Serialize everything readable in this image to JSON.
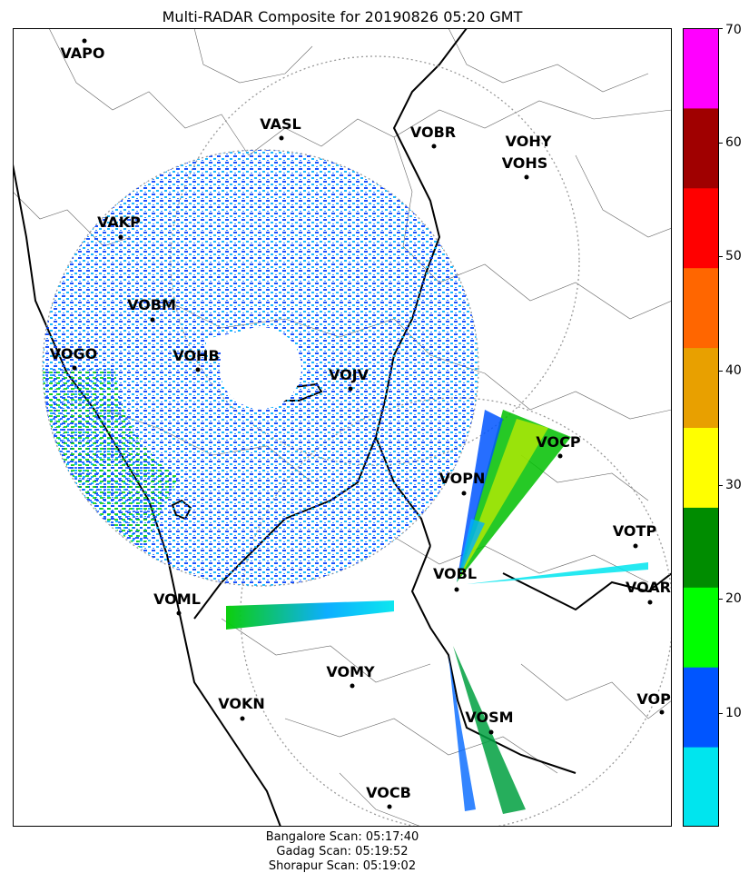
{
  "title": "Multi-RADAR Composite for 20190826 05:20 GMT",
  "stations": [
    {
      "code": "VAPO"
    },
    {
      "code": "VASL"
    },
    {
      "code": "VOBR"
    },
    {
      "code": "VOHY"
    },
    {
      "code": "VOHS"
    },
    {
      "code": "VAKP"
    },
    {
      "code": "VOBM"
    },
    {
      "code": "VOGO"
    },
    {
      "code": "VOHB"
    },
    {
      "code": "VOJV"
    },
    {
      "code": "VOCP"
    },
    {
      "code": "VOPN"
    },
    {
      "code": "VOTP"
    },
    {
      "code": "VOBL"
    },
    {
      "code": "VOAR"
    },
    {
      "code": "VOML"
    },
    {
      "code": "VOMY"
    },
    {
      "code": "VOKN"
    },
    {
      "code": "VOSM"
    },
    {
      "code": "VOPC"
    },
    {
      "code": "VOCB"
    }
  ],
  "colorbar": {
    "min": 0,
    "max": 70,
    "ticks": [
      "10",
      "20",
      "30",
      "40",
      "50",
      "60",
      "70"
    ],
    "colors": [
      "#00e5ee",
      "#0055ff",
      "#00ff00",
      "#008c00",
      "#ffff00",
      "#e8a000",
      "#ff6600",
      "#ff0000",
      "#a00000",
      "#ff00ff"
    ]
  },
  "footer": {
    "scan1": "Bangalore Scan: 05:17:40",
    "scan2": "Gadag Scan: 05:19:52",
    "scan3": "Shorapur Scan: 05:19:02"
  }
}
